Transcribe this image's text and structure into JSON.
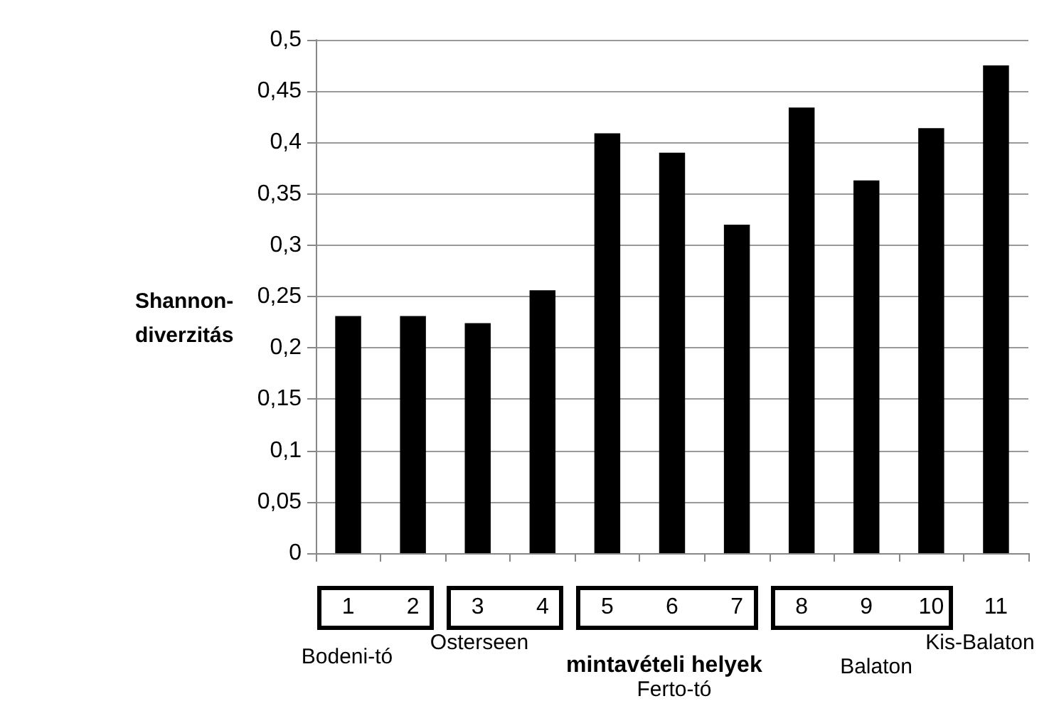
{
  "chart_data": {
    "type": "bar",
    "ylabel": "Shannon-diverzitás",
    "xlabel": "mintavételi helyek",
    "categories": [
      "1",
      "2",
      "3",
      "4",
      "5",
      "6",
      "7",
      "8",
      "9",
      "10",
      "11"
    ],
    "values": [
      0.231,
      0.231,
      0.224,
      0.256,
      0.409,
      0.39,
      0.32,
      0.434,
      0.363,
      0.414,
      0.475
    ],
    "color": "#000000",
    "ylim": [
      0,
      0.5
    ],
    "yticks": [
      0,
      {
        "value": 0.05,
        "label": "0,05"
      },
      {
        "value": 0.1,
        "label": "0,1"
      },
      {
        "value": 0.15,
        "label": "0,15"
      },
      {
        "value": 0.2,
        "label": "0,2"
      },
      {
        "value": 0.25,
        "label": "0,25"
      },
      {
        "value": 0.3,
        "label": "0,3"
      },
      {
        "value": 0.35,
        "label": "0,35"
      },
      {
        "value": 0.4,
        "label": "0,4"
      },
      {
        "value": 0.45,
        "label": "0,45"
      },
      {
        "value": 0.5,
        "label": "0,5"
      }
    ],
    "grid": "y",
    "annotations": [
      "Bodeni-tó",
      "Osterseen",
      "Ferto-tó",
      "Balaton",
      "Kis-Balaton"
    ]
  }
}
